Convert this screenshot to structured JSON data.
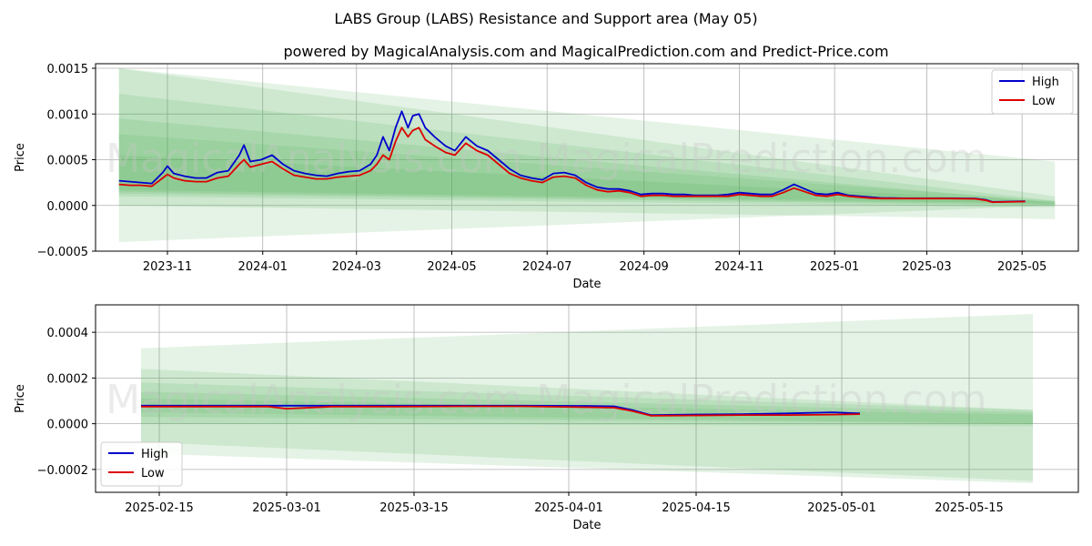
{
  "title": "LABS Group (LABS) Resistance and Support area (May 05)",
  "subtitle": "powered by MagicalAnalysis.com and MagicalPrediction.com and Predict-Price.com",
  "watermarks": [
    "MagicalAnalysis.com",
    "MagicalPrediction.com"
  ],
  "colors": {
    "high": "#0000cc",
    "low": "#dd0000",
    "band": "#4caf50",
    "grid": "#b0b0b0"
  },
  "chart_data": [
    {
      "type": "line",
      "panel": "top",
      "xlabel": "Date",
      "ylabel": "Price",
      "x_ticks": [
        "2023-11",
        "2024-01",
        "2024-03",
        "2024-05",
        "2024-07",
        "2024-09",
        "2024-11",
        "2025-01",
        "2025-03",
        "2025-05"
      ],
      "y_ticks": [
        "−0.0005",
        "0.0000",
        "0.0005",
        "0.0010",
        "0.0015"
      ],
      "ylim": [
        -0.0005,
        0.00155
      ],
      "grid": true,
      "legend_position": "top-right",
      "legend": [
        "High",
        "Low"
      ],
      "bands_start": "2023-10-01",
      "bands_end": "2025-05-22",
      "bands": [
        {
          "start": [
            -0.0004,
            0.0015
          ],
          "end": [
            0.0,
            0.00048
          ]
        },
        {
          "start": [
            0.0,
            0.0015
          ],
          "end": [
            -0.00015,
            0.0001
          ]
        },
        {
          "start": [
            0.0001,
            0.00122
          ],
          "end": [
            -2e-05,
            5e-05
          ]
        },
        {
          "start": [
            0.00013,
            0.00095
          ],
          "end": [
            0.0,
            3e-05
          ]
        },
        {
          "start": [
            0.00015,
            0.00078
          ],
          "end": [
            1e-05,
            5e-05
          ]
        },
        {
          "start": [
            0.00017,
            0.00055
          ],
          "end": [
            2e-05,
            4e-05
          ]
        }
      ],
      "series": [
        {
          "name": "High",
          "x": [
            "2023-10-01",
            "2023-10-08",
            "2023-10-15",
            "2023-10-22",
            "2023-10-29",
            "2023-11-01",
            "2023-11-05",
            "2023-11-12",
            "2023-11-19",
            "2023-11-26",
            "2023-12-03",
            "2023-12-10",
            "2023-12-17",
            "2023-12-20",
            "2023-12-24",
            "2023-12-31",
            "2024-01-07",
            "2024-01-14",
            "2024-01-21",
            "2024-01-28",
            "2024-02-04",
            "2024-02-11",
            "2024-02-18",
            "2024-02-25",
            "2024-03-03",
            "2024-03-10",
            "2024-03-14",
            "2024-03-18",
            "2024-03-22",
            "2024-03-26",
            "2024-03-30",
            "2024-04-03",
            "2024-04-06",
            "2024-04-10",
            "2024-04-14",
            "2024-04-20",
            "2024-04-27",
            "2024-05-03",
            "2024-05-10",
            "2024-05-17",
            "2024-05-24",
            "2024-05-31",
            "2024-06-07",
            "2024-06-14",
            "2024-06-21",
            "2024-06-28",
            "2024-07-05",
            "2024-07-12",
            "2024-07-19",
            "2024-07-26",
            "2024-08-02",
            "2024-08-09",
            "2024-08-16",
            "2024-08-23",
            "2024-08-30",
            "2024-09-06",
            "2024-09-13",
            "2024-09-20",
            "2024-09-27",
            "2024-10-04",
            "2024-10-11",
            "2024-10-18",
            "2024-10-25",
            "2024-11-01",
            "2024-11-08",
            "2024-11-15",
            "2024-11-22",
            "2024-11-29",
            "2024-12-06",
            "2024-12-13",
            "2024-12-20",
            "2024-12-27",
            "2025-01-03",
            "2025-01-10",
            "2025-01-17",
            "2025-01-24",
            "2025-01-31",
            "2025-02-07",
            "2025-02-14",
            "2025-03-01",
            "2025-03-15",
            "2025-04-01",
            "2025-04-08",
            "2025-04-12",
            "2025-04-20",
            "2025-05-03"
          ],
          "values": [
            0.00027,
            0.00026,
            0.00025,
            0.00024,
            0.00036,
            0.00043,
            0.00035,
            0.00032,
            0.0003,
            0.0003,
            0.00036,
            0.00038,
            0.00055,
            0.00066,
            0.00048,
            0.0005,
            0.00055,
            0.00045,
            0.00038,
            0.00035,
            0.00033,
            0.00032,
            0.00035,
            0.00037,
            0.00038,
            0.00045,
            0.00055,
            0.00075,
            0.0006,
            0.00085,
            0.00103,
            0.00085,
            0.00098,
            0.001,
            0.00085,
            0.00075,
            0.00065,
            0.0006,
            0.00075,
            0.00065,
            0.0006,
            0.0005,
            0.0004,
            0.00033,
            0.0003,
            0.00028,
            0.00035,
            0.00036,
            0.00033,
            0.00025,
            0.0002,
            0.00018,
            0.00018,
            0.00016,
            0.00012,
            0.00013,
            0.00013,
            0.00012,
            0.00012,
            0.00011,
            0.00011,
            0.00011,
            0.00012,
            0.00014,
            0.00013,
            0.00012,
            0.00012,
            0.00017,
            0.00023,
            0.00018,
            0.00013,
            0.00012,
            0.00014,
            0.00011,
            0.0001,
            9e-05,
            8e-05,
            8e-05,
            7.8e-05,
            7.8e-05,
            7.8e-05,
            7.5e-05,
            6e-05,
            3.8e-05,
            4e-05,
            4.5e-05
          ]
        },
        {
          "name": "Low",
          "x": [
            "2023-10-01",
            "2023-10-08",
            "2023-10-15",
            "2023-10-22",
            "2023-10-29",
            "2023-11-01",
            "2023-11-05",
            "2023-11-12",
            "2023-11-19",
            "2023-11-26",
            "2023-12-03",
            "2023-12-10",
            "2023-12-17",
            "2023-12-20",
            "2023-12-24",
            "2023-12-31",
            "2024-01-07",
            "2024-01-14",
            "2024-01-21",
            "2024-01-28",
            "2024-02-04",
            "2024-02-11",
            "2024-02-18",
            "2024-02-25",
            "2024-03-03",
            "2024-03-10",
            "2024-03-14",
            "2024-03-18",
            "2024-03-22",
            "2024-03-26",
            "2024-03-30",
            "2024-04-03",
            "2024-04-06",
            "2024-04-10",
            "2024-04-14",
            "2024-04-20",
            "2024-04-27",
            "2024-05-03",
            "2024-05-10",
            "2024-05-17",
            "2024-05-24",
            "2024-05-31",
            "2024-06-07",
            "2024-06-14",
            "2024-06-21",
            "2024-06-28",
            "2024-07-05",
            "2024-07-12",
            "2024-07-19",
            "2024-07-26",
            "2024-08-02",
            "2024-08-09",
            "2024-08-16",
            "2024-08-23",
            "2024-08-30",
            "2024-09-06",
            "2024-09-13",
            "2024-09-20",
            "2024-09-27",
            "2024-10-04",
            "2024-10-11",
            "2024-10-18",
            "2024-10-25",
            "2024-11-01",
            "2024-11-08",
            "2024-11-15",
            "2024-11-22",
            "2024-11-29",
            "2024-12-06",
            "2024-12-13",
            "2024-12-20",
            "2024-12-27",
            "2025-01-03",
            "2025-01-10",
            "2025-01-17",
            "2025-01-24",
            "2025-01-31",
            "2025-02-07",
            "2025-02-14",
            "2025-03-01",
            "2025-03-15",
            "2025-04-01",
            "2025-04-08",
            "2025-04-12",
            "2025-04-20",
            "2025-05-03"
          ],
          "values": [
            0.00023,
            0.00022,
            0.00022,
            0.00021,
            0.0003,
            0.00034,
            0.0003,
            0.00027,
            0.00026,
            0.00026,
            0.0003,
            0.00032,
            0.00045,
            0.0005,
            0.00042,
            0.00045,
            0.00048,
            0.0004,
            0.00033,
            0.00031,
            0.00029,
            0.00029,
            0.00031,
            0.00032,
            0.00033,
            0.00038,
            0.00045,
            0.00055,
            0.0005,
            0.0007,
            0.00085,
            0.00075,
            0.00082,
            0.00085,
            0.00072,
            0.00065,
            0.00058,
            0.00055,
            0.00068,
            0.0006,
            0.00055,
            0.00045,
            0.00035,
            0.0003,
            0.00027,
            0.00025,
            0.00031,
            0.00032,
            0.0003,
            0.00022,
            0.00017,
            0.00015,
            0.00016,
            0.00014,
            0.0001,
            0.00011,
            0.00011,
            0.0001,
            0.0001,
            0.0001,
            0.0001,
            0.0001,
            0.0001,
            0.00012,
            0.00011,
            0.0001,
            0.0001,
            0.00014,
            0.00019,
            0.00015,
            0.00011,
            0.0001,
            0.00012,
            0.0001,
            9e-05,
            8e-05,
            7.5e-05,
            7.5e-05,
            7.5e-05,
            7.5e-05,
            7.5e-05,
            7.2e-05,
            5.5e-05,
            3.5e-05,
            3.8e-05,
            4.2e-05
          ]
        }
      ]
    },
    {
      "type": "line",
      "panel": "bottom",
      "xlabel": "Date",
      "ylabel": "Price",
      "x_ticks": [
        "2025-02-15",
        "2025-03-01",
        "2025-03-15",
        "2025-04-01",
        "2025-04-15",
        "2025-05-01",
        "2025-05-15"
      ],
      "y_ticks": [
        "−0.0002",
        "0.0000",
        "0.0002",
        "0.0004"
      ],
      "ylim": [
        -0.0003,
        0.00052
      ],
      "grid": true,
      "legend_position": "bottom-left",
      "legend": [
        "High",
        "Low"
      ],
      "bands_start": "2025-02-13",
      "bands_end": "2025-05-22",
      "bands": [
        {
          "start": [
            -0.00013,
            0.00033
          ],
          "end": [
            -0.00026,
            0.00048
          ]
        },
        {
          "start": [
            -8e-05,
            0.00024
          ],
          "end": [
            -0.00025,
            6e-05
          ]
        },
        {
          "start": [
            0.0,
            0.00018
          ],
          "end": [
            -1e-05,
            6e-05
          ]
        },
        {
          "start": [
            3e-05,
            0.00014
          ],
          "end": [
            0.0,
            5e-05
          ]
        },
        {
          "start": [
            5e-05,
            0.00011
          ],
          "end": [
            0.0,
            4e-05
          ]
        }
      ],
      "series": [
        {
          "name": "High",
          "x": [
            "2025-02-13",
            "2025-02-20",
            "2025-02-27",
            "2025-03-06",
            "2025-03-13",
            "2025-03-20",
            "2025-03-27",
            "2025-04-03",
            "2025-04-06",
            "2025-04-08",
            "2025-04-10",
            "2025-04-14",
            "2025-04-20",
            "2025-04-25",
            "2025-04-30",
            "2025-05-03"
          ],
          "values": [
            7.9e-05,
            7.9e-05,
            7.9e-05,
            7.9e-05,
            7.9e-05,
            7.9e-05,
            7.9e-05,
            7.8e-05,
            7.6e-05,
            6e-05,
            3.8e-05,
            4e-05,
            4.2e-05,
            4.5e-05,
            5e-05,
            4.5e-05
          ]
        },
        {
          "name": "Low",
          "x": [
            "2025-02-13",
            "2025-02-20",
            "2025-02-27",
            "2025-03-01",
            "2025-03-06",
            "2025-03-13",
            "2025-03-20",
            "2025-03-27",
            "2025-04-03",
            "2025-04-06",
            "2025-04-08",
            "2025-04-10",
            "2025-04-14",
            "2025-04-20",
            "2025-04-25",
            "2025-04-30",
            "2025-05-03"
          ],
          "values": [
            7.5e-05,
            7.5e-05,
            7.5e-05,
            6.6e-05,
            7.5e-05,
            7.5e-05,
            7.6e-05,
            7.6e-05,
            7.2e-05,
            7e-05,
            5.5e-05,
            3.5e-05,
            3.6e-05,
            3.8e-05,
            3.8e-05,
            4e-05,
            4.2e-05
          ]
        }
      ]
    }
  ]
}
